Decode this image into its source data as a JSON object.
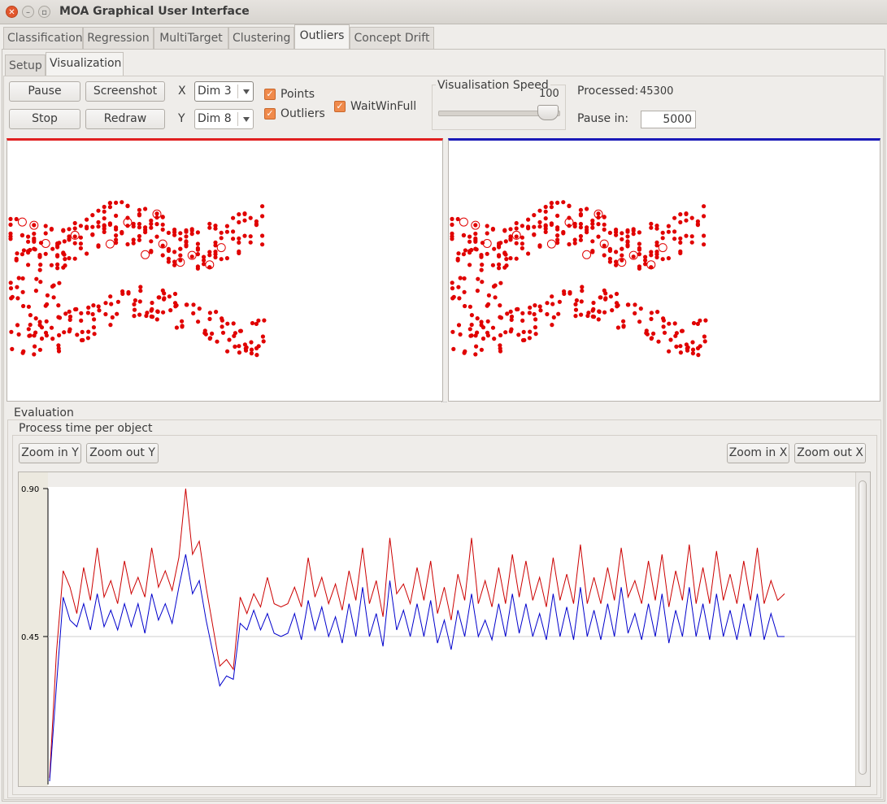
{
  "window": {
    "title": "MOA Graphical User Interface"
  },
  "main_tabs": [
    {
      "label": "Classification",
      "active": false
    },
    {
      "label": "Regression",
      "active": false
    },
    {
      "label": "MultiTarget",
      "active": false
    },
    {
      "label": "Clustering",
      "active": false
    },
    {
      "label": "Outliers",
      "active": true
    },
    {
      "label": "Concept Drift",
      "active": false
    }
  ],
  "sub_tabs": [
    {
      "label": "Setup",
      "active": false
    },
    {
      "label": "Visualization",
      "active": true
    }
  ],
  "controls": {
    "pause_label": "Pause",
    "screenshot_label": "Screenshot",
    "stop_label": "Stop",
    "redraw_label": "Redraw",
    "x_label": "X",
    "y_label": "Y",
    "x_dim": "Dim 3",
    "y_dim": "Dim 8",
    "points_label": "Points",
    "outliers_label": "Outliers",
    "waitwinfull_label": "WaitWinFull",
    "points_checked": true,
    "outliers_checked": true,
    "waitwinfull_checked": true,
    "speed_title": "Visualisation Speed",
    "speed_value": "100",
    "processed_label": "Processed:",
    "processed_value": "45300",
    "pause_in_label": "Pause in:",
    "pause_in_value": "5000"
  },
  "colors": {
    "left_panel_accent": "#e02020",
    "right_panel_accent": "#1a1ab8",
    "points": "#e00000",
    "series_red": "#cc0000",
    "series_blue": "#0000cc"
  },
  "evaluation": {
    "title": "Evaluation",
    "subtitle": "Process time per object",
    "zoom_in_y": "Zoom in Y",
    "zoom_out_y": "Zoom out Y",
    "zoom_in_x": "Zoom in X",
    "zoom_out_x": "Zoom out X"
  },
  "chart_data": {
    "type": "line",
    "title": "Process time per object",
    "y_ticks": [
      "0.90",
      "0.45"
    ],
    "ylim": [
      0,
      0.9
    ],
    "grid": "horizontal line at 0.45",
    "series": [
      {
        "color": "#cc0000",
        "values": [
          0.02,
          0.4,
          0.65,
          0.6,
          0.52,
          0.66,
          0.56,
          0.72,
          0.57,
          0.62,
          0.55,
          0.68,
          0.58,
          0.63,
          0.57,
          0.72,
          0.6,
          0.65,
          0.59,
          0.69,
          0.9,
          0.7,
          0.74,
          0.6,
          0.48,
          0.36,
          0.38,
          0.35,
          0.57,
          0.52,
          0.58,
          0.54,
          0.63,
          0.55,
          0.54,
          0.55,
          0.6,
          0.54,
          0.69,
          0.57,
          0.63,
          0.55,
          0.61,
          0.53,
          0.65,
          0.56,
          0.72,
          0.55,
          0.62,
          0.51,
          0.75,
          0.58,
          0.61,
          0.55,
          0.66,
          0.56,
          0.68,
          0.52,
          0.6,
          0.5,
          0.64,
          0.56,
          0.75,
          0.55,
          0.62,
          0.54,
          0.66,
          0.55,
          0.7,
          0.57,
          0.68,
          0.56,
          0.63,
          0.54,
          0.69,
          0.56,
          0.64,
          0.55,
          0.73,
          0.55,
          0.63,
          0.55,
          0.66,
          0.56,
          0.72,
          0.57,
          0.62,
          0.55,
          0.68,
          0.56,
          0.7,
          0.54,
          0.65,
          0.56,
          0.73,
          0.55,
          0.66,
          0.55,
          0.71,
          0.56,
          0.64,
          0.55,
          0.68,
          0.56,
          0.72,
          0.55,
          0.62,
          0.56,
          0.58
        ]
      },
      {
        "color": "#0000cc",
        "values": [
          0.01,
          0.3,
          0.57,
          0.5,
          0.48,
          0.55,
          0.47,
          0.58,
          0.48,
          0.53,
          0.47,
          0.55,
          0.48,
          0.55,
          0.46,
          0.58,
          0.5,
          0.55,
          0.49,
          0.6,
          0.7,
          0.58,
          0.62,
          0.5,
          0.4,
          0.3,
          0.33,
          0.32,
          0.49,
          0.47,
          0.53,
          0.47,
          0.52,
          0.46,
          0.45,
          0.46,
          0.52,
          0.44,
          0.56,
          0.47,
          0.54,
          0.45,
          0.51,
          0.43,
          0.55,
          0.45,
          0.6,
          0.45,
          0.52,
          0.42,
          0.62,
          0.47,
          0.53,
          0.45,
          0.55,
          0.45,
          0.56,
          0.43,
          0.5,
          0.41,
          0.53,
          0.45,
          0.58,
          0.45,
          0.5,
          0.44,
          0.55,
          0.45,
          0.58,
          0.46,
          0.55,
          0.45,
          0.52,
          0.44,
          0.58,
          0.45,
          0.54,
          0.44,
          0.6,
          0.45,
          0.53,
          0.44,
          0.55,
          0.45,
          0.6,
          0.46,
          0.52,
          0.44,
          0.55,
          0.45,
          0.58,
          0.43,
          0.53,
          0.45,
          0.6,
          0.45,
          0.55,
          0.44,
          0.58,
          0.45,
          0.53,
          0.44,
          0.55,
          0.45,
          0.58,
          0.44,
          0.52,
          0.45,
          0.45
        ]
      }
    ]
  }
}
